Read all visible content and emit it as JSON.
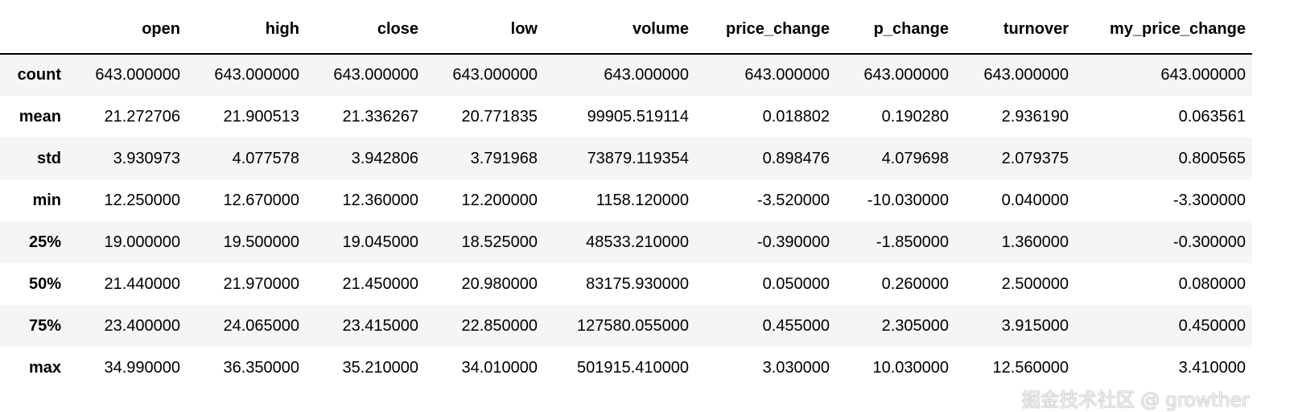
{
  "columns": [
    "open",
    "high",
    "close",
    "low",
    "volume",
    "price_change",
    "p_change",
    "turnover",
    "my_price_change"
  ],
  "rows": [
    {
      "label": "count",
      "values": [
        "643.000000",
        "643.000000",
        "643.000000",
        "643.000000",
        "643.000000",
        "643.000000",
        "643.000000",
        "643.000000",
        "643.000000"
      ]
    },
    {
      "label": "mean",
      "values": [
        "21.272706",
        "21.900513",
        "21.336267",
        "20.771835",
        "99905.519114",
        "0.018802",
        "0.190280",
        "2.936190",
        "0.063561"
      ]
    },
    {
      "label": "std",
      "values": [
        "3.930973",
        "4.077578",
        "3.942806",
        "3.791968",
        "73879.119354",
        "0.898476",
        "4.079698",
        "2.079375",
        "0.800565"
      ]
    },
    {
      "label": "min",
      "values": [
        "12.250000",
        "12.670000",
        "12.360000",
        "12.200000",
        "1158.120000",
        "-3.520000",
        "-10.030000",
        "0.040000",
        "-3.300000"
      ]
    },
    {
      "label": "25%",
      "values": [
        "19.000000",
        "19.500000",
        "19.045000",
        "18.525000",
        "48533.210000",
        "-0.390000",
        "-1.850000",
        "1.360000",
        "-0.300000"
      ]
    },
    {
      "label": "50%",
      "values": [
        "21.440000",
        "21.970000",
        "21.450000",
        "20.980000",
        "83175.930000",
        "0.050000",
        "0.260000",
        "2.500000",
        "0.080000"
      ]
    },
    {
      "label": "75%",
      "values": [
        "23.400000",
        "24.065000",
        "23.415000",
        "22.850000",
        "127580.055000",
        "0.455000",
        "2.305000",
        "3.915000",
        "0.450000"
      ]
    },
    {
      "label": "max",
      "values": [
        "34.990000",
        "36.350000",
        "35.210000",
        "34.010000",
        "501915.410000",
        "3.030000",
        "10.030000",
        "12.560000",
        "3.410000"
      ]
    }
  ],
  "watermark": "掘金技术社区 @ growther"
}
